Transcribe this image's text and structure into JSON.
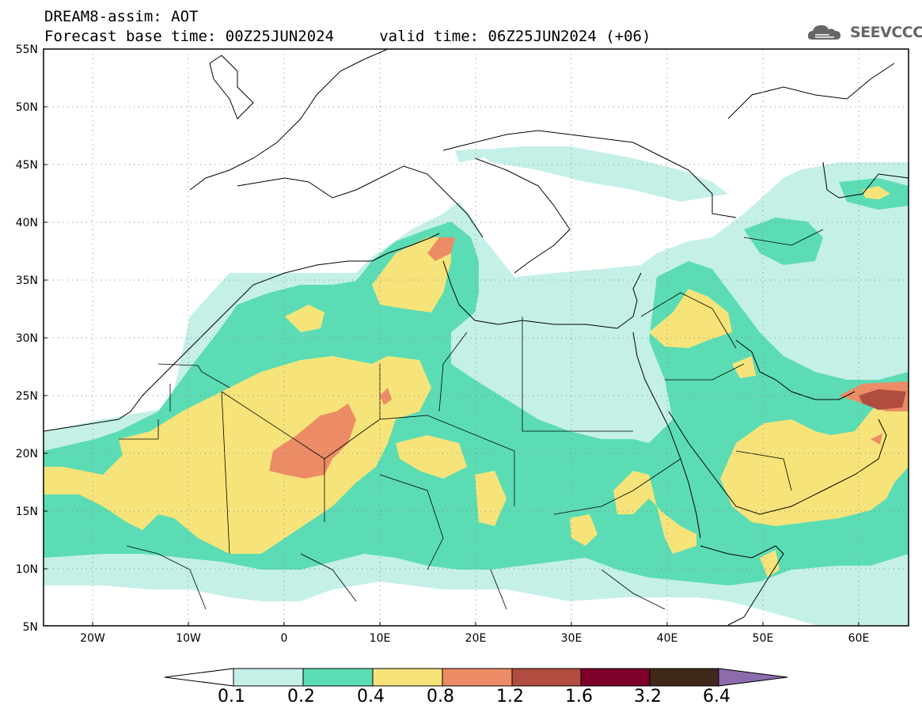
{
  "header": {
    "line1": "DREAM8-assim: AOT",
    "line2": "Forecast base time: 00Z25JUN2024     valid time: 06Z25JUN2024 (+06)"
  },
  "logo": {
    "text": "SEEVCCC",
    "icon": "cloud-logo-icon"
  },
  "axes": {
    "lat_labels": [
      "55N",
      "50N",
      "45N",
      "40N",
      "35N",
      "30N",
      "25N",
      "20N",
      "15N",
      "10N",
      "5N"
    ],
    "lat_values": [
      55,
      50,
      45,
      40,
      35,
      30,
      25,
      20,
      15,
      10,
      5
    ],
    "lon_labels": [
      "20W",
      "10W",
      "0",
      "10E",
      "20E",
      "30E",
      "40E",
      "50E",
      "60E"
    ],
    "lon_values": [
      -20,
      -10,
      0,
      10,
      20,
      30,
      40,
      50,
      60
    ],
    "lon_range": [
      -25,
      65
    ],
    "lat_range": [
      5,
      55
    ],
    "grid": "dotted"
  },
  "colorbar": {
    "colors": [
      "#ffffff",
      "#c4f0e8",
      "#5cdcb4",
      "#f6e47a",
      "#ec8c66",
      "#b04c40",
      "#7c0028",
      "#40281a",
      "#8c6cac"
    ],
    "labels": [
      "0.1",
      "0.2",
      "0.4",
      "0.8",
      "1.2",
      "1.6",
      "3.2",
      "6.4"
    ]
  }
}
